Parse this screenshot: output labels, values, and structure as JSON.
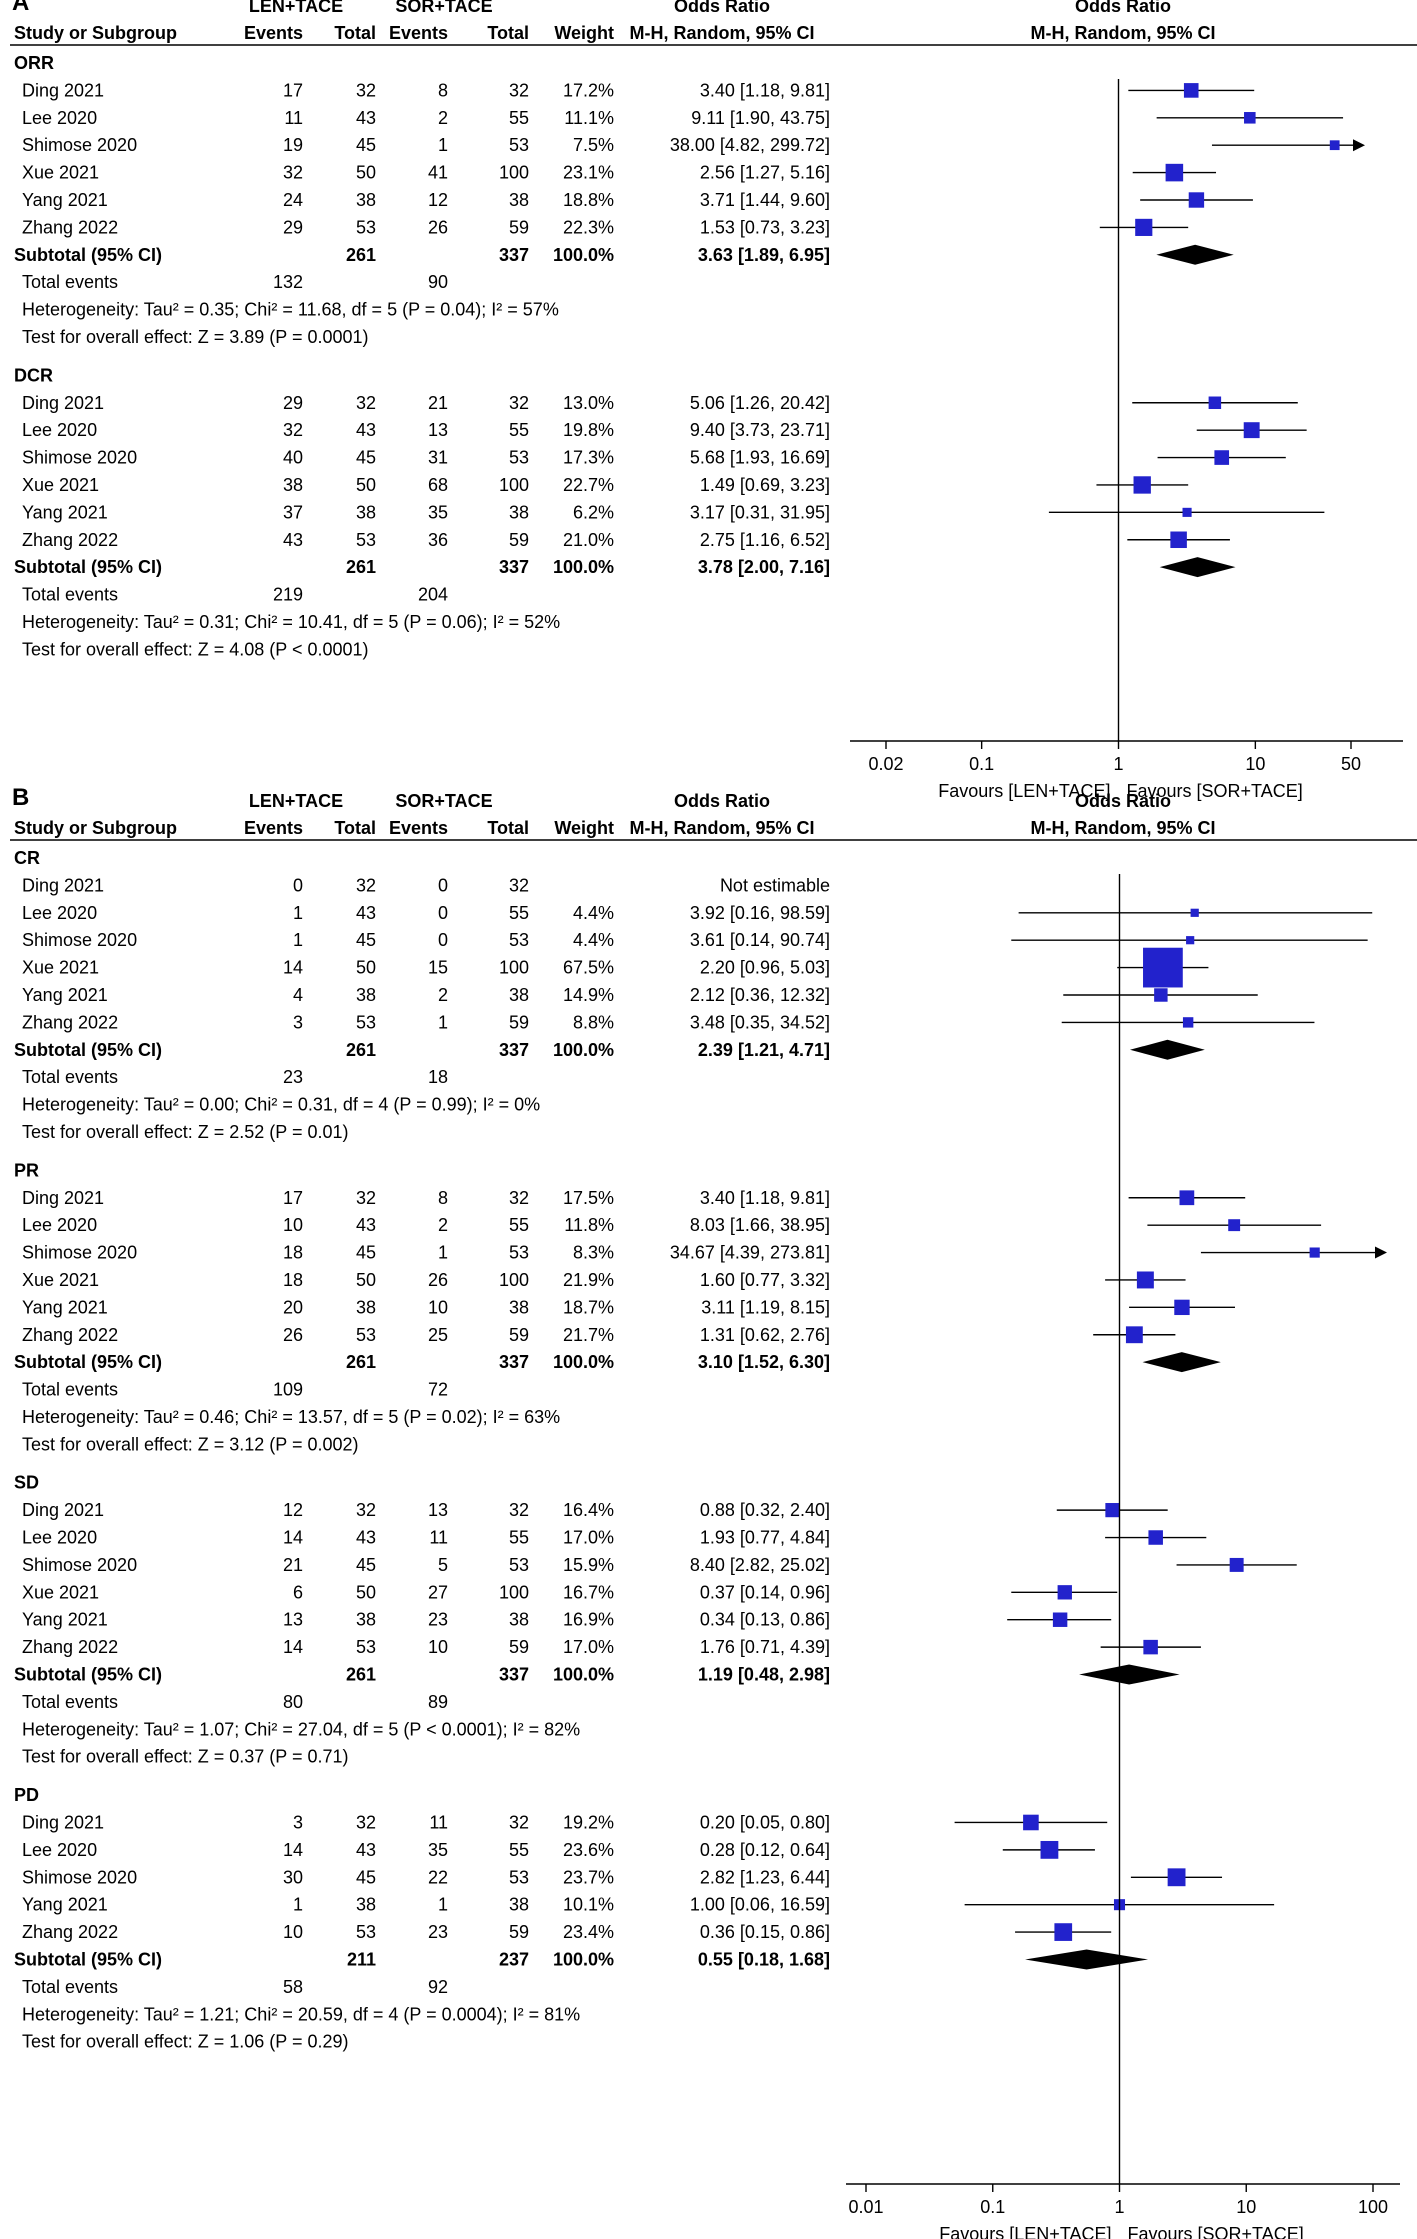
{
  "chart_data": [
    {
      "type": "forest",
      "panel_label": "A",
      "header": {
        "group1": "LEN+TACE",
        "group2": "SOR+TACE",
        "or_title": "Odds Ratio",
        "plot_title": "Odds Ratio",
        "study_col": "Study or Subgroup",
        "events": "Events",
        "total": "Total",
        "weight": "Weight",
        "method": "M-H, Random, 95% CI"
      },
      "axis": {
        "scale": "log",
        "ticks": [
          0.02,
          0.1,
          1,
          10,
          50
        ],
        "tick_labels": [
          "0.02",
          "0.1",
          "1",
          "10",
          "50"
        ],
        "range": [
          0.01,
          90
        ],
        "left_label": "Favours [LEN+TACE]",
        "right_label": "Favours [SOR+TACE]"
      },
      "subgroups": [
        {
          "name": "ORR",
          "studies": [
            {
              "study": "Ding 2021",
              "e1": "17",
              "t1": "32",
              "e2": "8",
              "t2": "32",
              "weight": "17.2%",
              "ci_text": "3.40 [1.18, 9.81]",
              "or": 3.4,
              "lo": 1.18,
              "hi": 9.81,
              "w": 17.2
            },
            {
              "study": "Lee 2020",
              "e1": "11",
              "t1": "43",
              "e2": "2",
              "t2": "55",
              "weight": "11.1%",
              "ci_text": "9.11 [1.90, 43.75]",
              "or": 9.11,
              "lo": 1.9,
              "hi": 43.75,
              "w": 11.1
            },
            {
              "study": "Shimose 2020",
              "e1": "19",
              "t1": "45",
              "e2": "1",
              "t2": "53",
              "weight": "7.5%",
              "ci_text": "38.00 [4.82, 299.72]",
              "or": 38.0,
              "lo": 4.82,
              "hi": 299.72,
              "w": 7.5
            },
            {
              "study": "Xue 2021",
              "e1": "32",
              "t1": "50",
              "e2": "41",
              "t2": "100",
              "weight": "23.1%",
              "ci_text": "2.56 [1.27, 5.16]",
              "or": 2.56,
              "lo": 1.27,
              "hi": 5.16,
              "w": 23.1
            },
            {
              "study": "Yang 2021",
              "e1": "24",
              "t1": "38",
              "e2": "12",
              "t2": "38",
              "weight": "18.8%",
              "ci_text": "3.71 [1.44, 9.60]",
              "or": 3.71,
              "lo": 1.44,
              "hi": 9.6,
              "w": 18.8
            },
            {
              "study": "Zhang 2022",
              "e1": "29",
              "t1": "53",
              "e2": "26",
              "t2": "59",
              "weight": "22.3%",
              "ci_text": "1.53 [0.73, 3.23]",
              "or": 1.53,
              "lo": 0.73,
              "hi": 3.23,
              "w": 22.3
            }
          ],
          "subtotal": {
            "label": "Subtotal (95% CI)",
            "t1": "261",
            "t2": "337",
            "weight": "100.0%",
            "ci_text": "3.63 [1.89, 6.95]",
            "or": 3.63,
            "lo": 1.89,
            "hi": 6.95
          },
          "total_events": {
            "label": "Total events",
            "e1": "132",
            "e2": "90"
          },
          "heterogeneity": "Heterogeneity: Tau² = 0.35; Chi² = 11.68, df = 5 (P = 0.04); I² = 57%",
          "overall": "Test for overall effect: Z = 3.89 (P = 0.0001)"
        },
        {
          "name": "DCR",
          "studies": [
            {
              "study": "Ding 2021",
              "e1": "29",
              "t1": "32",
              "e2": "21",
              "t2": "32",
              "weight": "13.0%",
              "ci_text": "5.06 [1.26, 20.42]",
              "or": 5.06,
              "lo": 1.26,
              "hi": 20.42,
              "w": 13.0
            },
            {
              "study": "Lee 2020",
              "e1": "32",
              "t1": "43",
              "e2": "13",
              "t2": "55",
              "weight": "19.8%",
              "ci_text": "9.40 [3.73, 23.71]",
              "or": 9.4,
              "lo": 3.73,
              "hi": 23.71,
              "w": 19.8
            },
            {
              "study": "Shimose 2020",
              "e1": "40",
              "t1": "45",
              "e2": "31",
              "t2": "53",
              "weight": "17.3%",
              "ci_text": "5.68 [1.93, 16.69]",
              "or": 5.68,
              "lo": 1.93,
              "hi": 16.69,
              "w": 17.3
            },
            {
              "study": "Xue 2021",
              "e1": "38",
              "t1": "50",
              "e2": "68",
              "t2": "100",
              "weight": "22.7%",
              "ci_text": "1.49 [0.69, 3.23]",
              "or": 1.49,
              "lo": 0.69,
              "hi": 3.23,
              "w": 22.7
            },
            {
              "study": "Yang 2021",
              "e1": "37",
              "t1": "38",
              "e2": "35",
              "t2": "38",
              "weight": "6.2%",
              "ci_text": "3.17 [0.31, 31.95]",
              "or": 3.17,
              "lo": 0.31,
              "hi": 31.95,
              "w": 6.2
            },
            {
              "study": "Zhang 2022",
              "e1": "43",
              "t1": "53",
              "e2": "36",
              "t2": "59",
              "weight": "21.0%",
              "ci_text": "2.75 [1.16, 6.52]",
              "or": 2.75,
              "lo": 1.16,
              "hi": 6.52,
              "w": 21.0
            }
          ],
          "subtotal": {
            "label": "Subtotal (95% CI)",
            "t1": "261",
            "t2": "337",
            "weight": "100.0%",
            "ci_text": "3.78 [2.00, 7.16]",
            "or": 3.78,
            "lo": 2.0,
            "hi": 7.16
          },
          "total_events": {
            "label": "Total events",
            "e1": "219",
            "e2": "204"
          },
          "heterogeneity": "Heterogeneity: Tau² = 0.31; Chi² = 10.41, df = 5 (P = 0.06); I² = 52%",
          "overall": "Test for overall effect: Z = 4.08 (P < 0.0001)"
        }
      ]
    },
    {
      "type": "forest",
      "panel_label": "B",
      "header": {
        "group1": "LEN+TACE",
        "group2": "SOR+TACE",
        "or_title": "Odds Ratio",
        "plot_title": "Odds Ratio",
        "study_col": "Study or Subgroup",
        "events": "Events",
        "total": "Total",
        "weight": "Weight",
        "method": "M-H, Random, 95% CI"
      },
      "axis": {
        "scale": "log",
        "ticks": [
          0.01,
          0.1,
          1,
          10,
          100
        ],
        "tick_labels": [
          "0.01",
          "0.1",
          "1",
          "10",
          "100"
        ],
        "range": [
          0.01,
          100
        ],
        "left_label": "Favours [LEN+TACE]",
        "right_label": "Favours [SOR+TACE]"
      },
      "subgroups": [
        {
          "name": "CR",
          "studies": [
            {
              "study": "Ding 2021",
              "e1": "0",
              "t1": "32",
              "e2": "0",
              "t2": "32",
              "weight": "",
              "ci_text": "Not estimable",
              "or": null,
              "lo": null,
              "hi": null,
              "w": 0
            },
            {
              "study": "Lee 2020",
              "e1": "1",
              "t1": "43",
              "e2": "0",
              "t2": "55",
              "weight": "4.4%",
              "ci_text": "3.92 [0.16, 98.59]",
              "or": 3.92,
              "lo": 0.16,
              "hi": 98.59,
              "w": 4.4
            },
            {
              "study": "Shimose 2020",
              "e1": "1",
              "t1": "45",
              "e2": "0",
              "t2": "53",
              "weight": "4.4%",
              "ci_text": "3.61 [0.14, 90.74]",
              "or": 3.61,
              "lo": 0.14,
              "hi": 90.74,
              "w": 4.4
            },
            {
              "study": "Xue 2021",
              "e1": "14",
              "t1": "50",
              "e2": "15",
              "t2": "100",
              "weight": "67.5%",
              "ci_text": "2.20 [0.96, 5.03]",
              "or": 2.2,
              "lo": 0.96,
              "hi": 5.03,
              "w": 67.5
            },
            {
              "study": "Yang 2021",
              "e1": "4",
              "t1": "38",
              "e2": "2",
              "t2": "38",
              "weight": "14.9%",
              "ci_text": "2.12 [0.36, 12.32]",
              "or": 2.12,
              "lo": 0.36,
              "hi": 12.32,
              "w": 14.9
            },
            {
              "study": "Zhang 2022",
              "e1": "3",
              "t1": "53",
              "e2": "1",
              "t2": "59",
              "weight": "8.8%",
              "ci_text": "3.48 [0.35, 34.52]",
              "or": 3.48,
              "lo": 0.35,
              "hi": 34.52,
              "w": 8.8
            }
          ],
          "subtotal": {
            "label": "Subtotal (95% CI)",
            "t1": "261",
            "t2": "337",
            "weight": "100.0%",
            "ci_text": "2.39 [1.21, 4.71]",
            "or": 2.39,
            "lo": 1.21,
            "hi": 4.71
          },
          "total_events": {
            "label": "Total events",
            "e1": "23",
            "e2": "18"
          },
          "heterogeneity": "Heterogeneity: Tau² = 0.00; Chi² = 0.31, df = 4 (P = 0.99); I² = 0%",
          "overall": "Test for overall effect: Z = 2.52 (P = 0.01)"
        },
        {
          "name": "PR",
          "studies": [
            {
              "study": "Ding 2021",
              "e1": "17",
              "t1": "32",
              "e2": "8",
              "t2": "32",
              "weight": "17.5%",
              "ci_text": "3.40 [1.18, 9.81]",
              "or": 3.4,
              "lo": 1.18,
              "hi": 9.81,
              "w": 17.5
            },
            {
              "study": "Lee 2020",
              "e1": "10",
              "t1": "43",
              "e2": "2",
              "t2": "55",
              "weight": "11.8%",
              "ci_text": "8.03 [1.66, 38.95]",
              "or": 8.03,
              "lo": 1.66,
              "hi": 38.95,
              "w": 11.8
            },
            {
              "study": "Shimose 2020",
              "e1": "18",
              "t1": "45",
              "e2": "1",
              "t2": "53",
              "weight": "8.3%",
              "ci_text": "34.67 [4.39, 273.81]",
              "or": 34.67,
              "lo": 4.39,
              "hi": 273.81,
              "w": 8.3
            },
            {
              "study": "Xue 2021",
              "e1": "18",
              "t1": "50",
              "e2": "26",
              "t2": "100",
              "weight": "21.9%",
              "ci_text": "1.60 [0.77, 3.32]",
              "or": 1.6,
              "lo": 0.77,
              "hi": 3.32,
              "w": 21.9
            },
            {
              "study": "Yang 2021",
              "e1": "20",
              "t1": "38",
              "e2": "10",
              "t2": "38",
              "weight": "18.7%",
              "ci_text": "3.11 [1.19, 8.15]",
              "or": 3.11,
              "lo": 1.19,
              "hi": 8.15,
              "w": 18.7
            },
            {
              "study": "Zhang 2022",
              "e1": "26",
              "t1": "53",
              "e2": "25",
              "t2": "59",
              "weight": "21.7%",
              "ci_text": "1.31 [0.62, 2.76]",
              "or": 1.31,
              "lo": 0.62,
              "hi": 2.76,
              "w": 21.7
            }
          ],
          "subtotal": {
            "label": "Subtotal (95% CI)",
            "t1": "261",
            "t2": "337",
            "weight": "100.0%",
            "ci_text": "3.10 [1.52, 6.30]",
            "or": 3.1,
            "lo": 1.52,
            "hi": 6.3
          },
          "total_events": {
            "label": "Total events",
            "e1": "109",
            "e2": "72"
          },
          "heterogeneity": "Heterogeneity: Tau² = 0.46; Chi² = 13.57, df = 5 (P = 0.02); I² = 63%",
          "overall": "Test for overall effect: Z = 3.12 (P = 0.002)"
        },
        {
          "name": "SD",
          "studies": [
            {
              "study": "Ding 2021",
              "e1": "12",
              "t1": "32",
              "e2": "13",
              "t2": "32",
              "weight": "16.4%",
              "ci_text": "0.88 [0.32, 2.40]",
              "or": 0.88,
              "lo": 0.32,
              "hi": 2.4,
              "w": 16.4
            },
            {
              "study": "Lee 2020",
              "e1": "14",
              "t1": "43",
              "e2": "11",
              "t2": "55",
              "weight": "17.0%",
              "ci_text": "1.93 [0.77, 4.84]",
              "or": 1.93,
              "lo": 0.77,
              "hi": 4.84,
              "w": 17.0
            },
            {
              "study": "Shimose 2020",
              "e1": "21",
              "t1": "45",
              "e2": "5",
              "t2": "53",
              "weight": "15.9%",
              "ci_text": "8.40 [2.82, 25.02]",
              "or": 8.4,
              "lo": 2.82,
              "hi": 25.02,
              "w": 15.9
            },
            {
              "study": "Xue 2021",
              "e1": "6",
              "t1": "50",
              "e2": "27",
              "t2": "100",
              "weight": "16.7%",
              "ci_text": "0.37 [0.14, 0.96]",
              "or": 0.37,
              "lo": 0.14,
              "hi": 0.96,
              "w": 16.7
            },
            {
              "study": "Yang 2021",
              "e1": "13",
              "t1": "38",
              "e2": "23",
              "t2": "38",
              "weight": "16.9%",
              "ci_text": "0.34 [0.13, 0.86]",
              "or": 0.34,
              "lo": 0.13,
              "hi": 0.86,
              "w": 16.9
            },
            {
              "study": "Zhang 2022",
              "e1": "14",
              "t1": "53",
              "e2": "10",
              "t2": "59",
              "weight": "17.0%",
              "ci_text": "1.76 [0.71, 4.39]",
              "or": 1.76,
              "lo": 0.71,
              "hi": 4.39,
              "w": 17.0
            }
          ],
          "subtotal": {
            "label": "Subtotal (95% CI)",
            "t1": "261",
            "t2": "337",
            "weight": "100.0%",
            "ci_text": "1.19 [0.48, 2.98]",
            "or": 1.19,
            "lo": 0.48,
            "hi": 2.98
          },
          "total_events": {
            "label": "Total events",
            "e1": "80",
            "e2": "89"
          },
          "heterogeneity": "Heterogeneity: Tau² = 1.07; Chi² = 27.04, df = 5 (P < 0.0001); I² = 82%",
          "overall": "Test for overall effect: Z = 0.37 (P = 0.71)"
        },
        {
          "name": "PD",
          "studies": [
            {
              "study": "Ding 2021",
              "e1": "3",
              "t1": "32",
              "e2": "11",
              "t2": "32",
              "weight": "19.2%",
              "ci_text": "0.20 [0.05, 0.80]",
              "or": 0.2,
              "lo": 0.05,
              "hi": 0.8,
              "w": 19.2
            },
            {
              "study": "Lee 2020",
              "e1": "14",
              "t1": "43",
              "e2": "35",
              "t2": "55",
              "weight": "23.6%",
              "ci_text": "0.28 [0.12, 0.64]",
              "or": 0.28,
              "lo": 0.12,
              "hi": 0.64,
              "w": 23.6
            },
            {
              "study": "Shimose 2020",
              "e1": "30",
              "t1": "45",
              "e2": "22",
              "t2": "53",
              "weight": "23.7%",
              "ci_text": "2.82 [1.23, 6.44]",
              "or": 2.82,
              "lo": 1.23,
              "hi": 6.44,
              "w": 23.7
            },
            {
              "study": "Yang 2021",
              "e1": "1",
              "t1": "38",
              "e2": "1",
              "t2": "38",
              "weight": "10.1%",
              "ci_text": "1.00 [0.06, 16.59]",
              "or": 1.0,
              "lo": 0.06,
              "hi": 16.59,
              "w": 10.1
            },
            {
              "study": "Zhang 2022",
              "e1": "10",
              "t1": "53",
              "e2": "23",
              "t2": "59",
              "weight": "23.4%",
              "ci_text": "0.36 [0.15, 0.86]",
              "or": 0.36,
              "lo": 0.15,
              "hi": 0.86,
              "w": 23.4
            }
          ],
          "subtotal": {
            "label": "Subtotal (95% CI)",
            "t1": "211",
            "t2": "237",
            "weight": "100.0%",
            "ci_text": "0.55 [0.18, 1.68]",
            "or": 0.55,
            "lo": 0.18,
            "hi": 1.68
          },
          "total_events": {
            "label": "Total events",
            "e1": "58",
            "e2": "92"
          },
          "heterogeneity": "Heterogeneity: Tau² = 1.21; Chi² = 20.59, df = 4 (P = 0.0004); I² = 81%",
          "overall": "Test for overall effect: Z = 1.06 (P = 0.29)"
        }
      ]
    }
  ],
  "colors": {
    "marker": "#2222cc",
    "text": "#000000",
    "line": "#000000"
  }
}
